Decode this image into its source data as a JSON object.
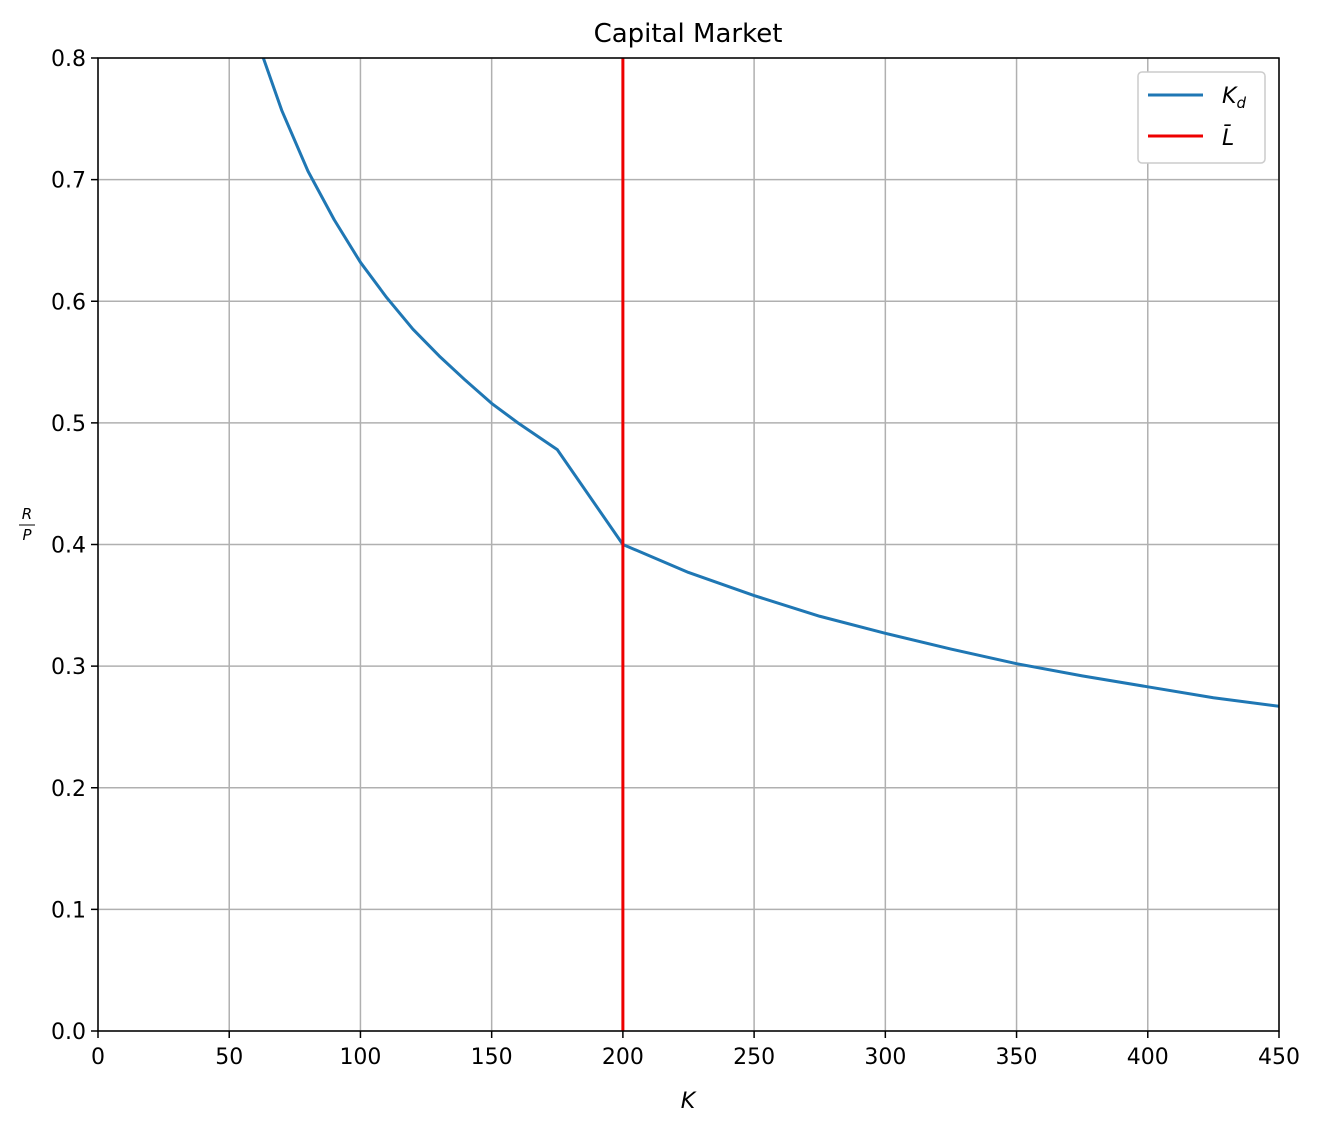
{
  "chart_data": {
    "type": "line",
    "title": "Capital Market",
    "xlabel": "K",
    "ylabel": {
      "numerator": "R",
      "denominator": "P"
    },
    "xlim": [
      0,
      450
    ],
    "ylim": [
      0,
      0.8
    ],
    "xticks": [
      0,
      50,
      100,
      150,
      200,
      250,
      300,
      350,
      400,
      450
    ],
    "xtick_labels": [
      "0",
      "50",
      "100",
      "150",
      "200",
      "250",
      "300",
      "350",
      "400",
      "450"
    ],
    "yticks": [
      0,
      0.1,
      0.2,
      0.3,
      0.4,
      0.5,
      0.6,
      0.7,
      0.8
    ],
    "ytick_labels": [
      "0.0",
      "0.1",
      "0.2",
      "0.3",
      "0.4",
      "0.5",
      "0.6",
      "0.7",
      "0.8"
    ],
    "grid": true,
    "legend_position": "top-right",
    "series": [
      {
        "name": "K_d",
        "name_base": "K",
        "name_sub": "d",
        "color": "#1f77b4",
        "x": [
          63,
          70,
          80,
          90,
          100,
          110,
          120,
          130,
          140,
          150,
          160,
          175,
          200,
          225,
          250,
          275,
          300,
          325,
          350,
          375,
          400,
          425,
          450
        ],
        "y": [
          0.8,
          0.757,
          0.707,
          0.667,
          0.632,
          0.603,
          0.577,
          0.555,
          0.535,
          0.516,
          0.5,
          0.478,
          0.4,
          0.377,
          0.358,
          0.341,
          0.327,
          0.314,
          0.302,
          0.292,
          0.283,
          0.274,
          0.267
        ]
      },
      {
        "name": "L̄",
        "name_base": "L̄",
        "color": "#ee0000",
        "x": [
          200,
          200
        ],
        "y": [
          0,
          0.8
        ]
      }
    ]
  }
}
